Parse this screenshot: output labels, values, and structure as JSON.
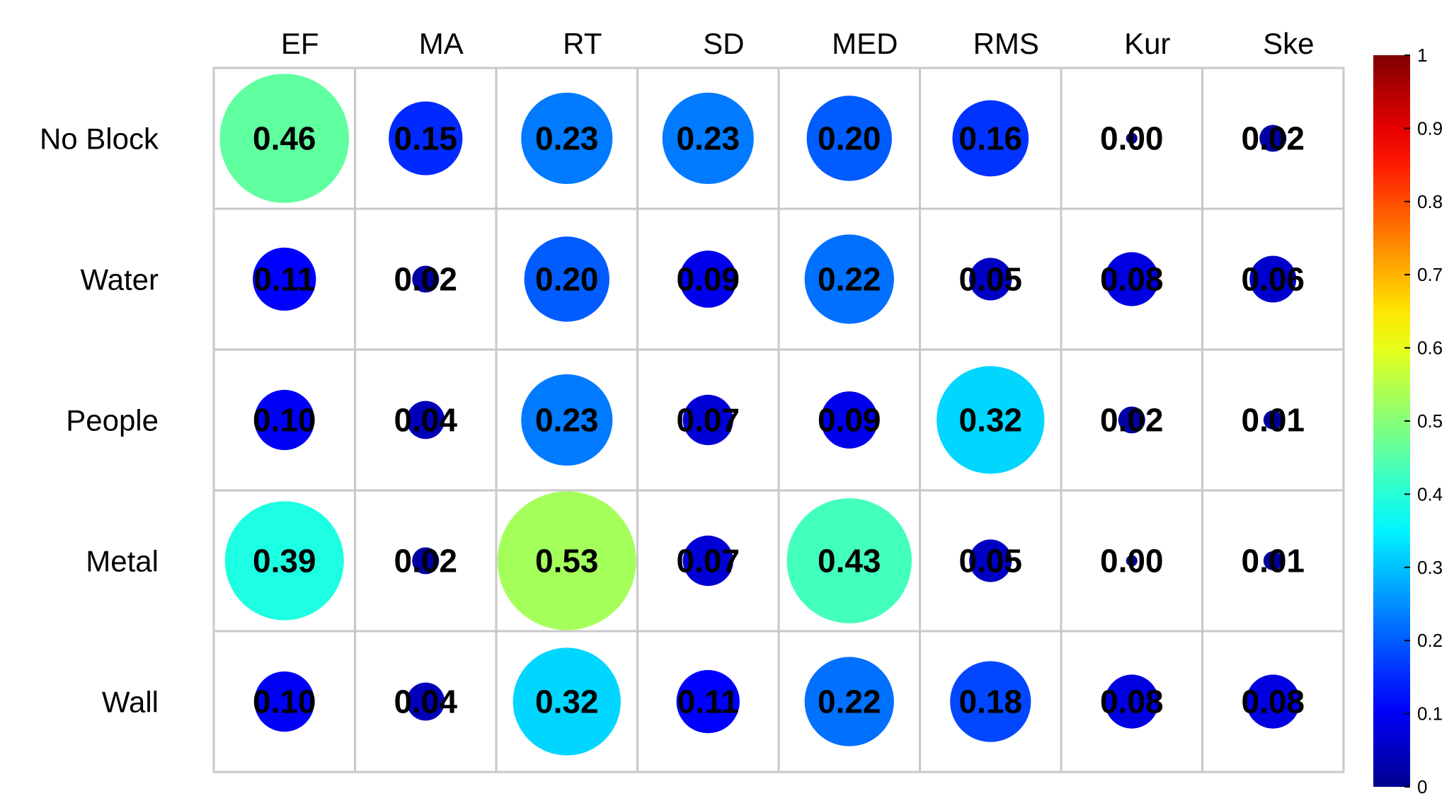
{
  "chart_data": {
    "type": "heatmap",
    "title": "",
    "xlabel": "",
    "ylabel": "",
    "columns": [
      "EF",
      "MA",
      "RT",
      "SD",
      "MED",
      "RMS",
      "Kur",
      "Ske"
    ],
    "rows": [
      "No Block",
      "Water",
      "People",
      "Metal",
      "Wall"
    ],
    "values": [
      [
        0.46,
        0.15,
        0.23,
        0.23,
        0.2,
        0.16,
        0.0,
        0.02
      ],
      [
        0.11,
        0.02,
        0.2,
        0.09,
        0.22,
        0.05,
        0.08,
        0.06
      ],
      [
        0.1,
        0.04,
        0.23,
        0.07,
        0.09,
        0.32,
        0.02,
        0.01
      ],
      [
        0.39,
        0.02,
        0.53,
        0.07,
        0.43,
        0.05,
        0.0,
        0.01
      ],
      [
        0.1,
        0.04,
        0.32,
        0.11,
        0.22,
        0.18,
        0.08,
        0.08
      ]
    ],
    "value_labels": [
      [
        "0.46",
        "0.15",
        "0.23",
        "0.23",
        "0.20",
        "0.16",
        "0.00",
        "0.02"
      ],
      [
        "0.11",
        "0.02",
        "0.20",
        "0.09",
        "0.22",
        "0.05",
        "0.08",
        "0.06"
      ],
      [
        "0.10",
        "0.04",
        "0.23",
        "0.07",
        "0.09",
        "0.32",
        "0.02",
        "0.01"
      ],
      [
        "0.39",
        "0.02",
        "0.53",
        "0.07",
        "0.43",
        "0.05",
        "0.00",
        "0.01"
      ],
      [
        "0.10",
        "0.04",
        "0.32",
        "0.11",
        "0.22",
        "0.18",
        "0.08",
        "0.08"
      ]
    ],
    "color_range": [
      0,
      1
    ],
    "colorbar_ticks": [
      "0",
      "0.1",
      "0.2",
      "0.3",
      "0.4",
      "0.5",
      "0.6",
      "0.7",
      "0.8",
      "0.9",
      "1"
    ],
    "colormap": [
      "#00008f",
      "#0000ff",
      "#00ffff",
      "#ffff00",
      "#ff0000",
      "#800000"
    ],
    "marker": "circle",
    "circle_size_encodes": "value",
    "grid": true,
    "legend": "right"
  }
}
